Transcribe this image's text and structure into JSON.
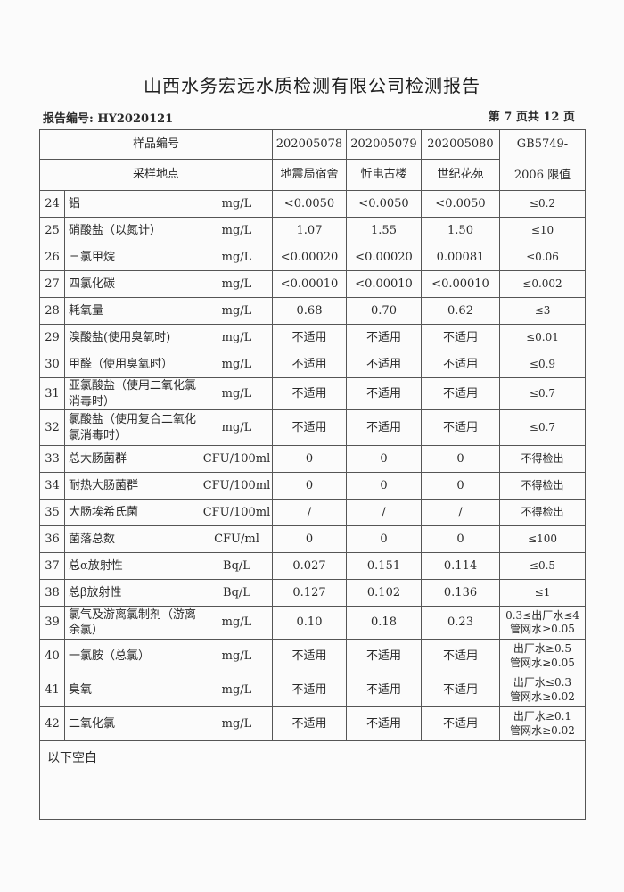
{
  "title": "山西水务宏远水质检测有限公司检测报告",
  "report_number": "报告编号: HY2020121",
  "page_info": "第 7 页共 12 页",
  "header": {
    "sample_no_label": "样品编号",
    "location_label": "采样地点",
    "samples": [
      {
        "id": "202005078",
        "location": "地震局宿舍"
      },
      {
        "id": "202005079",
        "location": "忻电古楼"
      },
      {
        "id": "202005080",
        "location": "世纪花苑"
      }
    ],
    "limit_label_1": "GB5749-",
    "limit_label_2": "2006 限值"
  },
  "rows": [
    {
      "no": "24",
      "name": "铝",
      "unit": "mg/L",
      "v1": "<0.0050",
      "v2": "<0.0050",
      "v3": "<0.0050",
      "limit": "≤0.2"
    },
    {
      "no": "25",
      "name": "硝酸盐（以氮计）",
      "unit": "mg/L",
      "v1": "1.07",
      "v2": "1.55",
      "v3": "1.50",
      "limit": "≤10"
    },
    {
      "no": "26",
      "name": "三氯甲烷",
      "unit": "mg/L",
      "v1": "<0.00020",
      "v2": "<0.00020",
      "v3": "0.00081",
      "limit": "≤0.06"
    },
    {
      "no": "27",
      "name": "四氯化碳",
      "unit": "mg/L",
      "v1": "<0.00010",
      "v2": "<0.00010",
      "v3": "<0.00010",
      "limit": "≤0.002"
    },
    {
      "no": "28",
      "name": "耗氧量",
      "unit": "mg/L",
      "v1": "0.68",
      "v2": "0.70",
      "v3": "0.62",
      "limit": "≤3"
    },
    {
      "no": "29",
      "name": "溴酸盐(使用臭氧时)",
      "unit": "mg/L",
      "v1": "不适用",
      "v2": "不适用",
      "v3": "不适用",
      "limit": "≤0.01"
    },
    {
      "no": "30",
      "name": "甲醛（使用臭氧时）",
      "unit": "mg/L",
      "v1": "不适用",
      "v2": "不适用",
      "v3": "不适用",
      "limit": "≤0.9"
    },
    {
      "no": "31",
      "name": "亚氯酸盐（使用二氧化氯消毒时）",
      "unit": "mg/L",
      "v1": "不适用",
      "v2": "不适用",
      "v3": "不适用",
      "limit": "≤0.7"
    },
    {
      "no": "32",
      "name": "氯酸盐（使用复合二氧化氯消毒时）",
      "unit": "mg/L",
      "v1": "不适用",
      "v2": "不适用",
      "v3": "不适用",
      "limit": "≤0.7"
    },
    {
      "no": "33",
      "name": "总大肠菌群",
      "unit": "CFU/100ml",
      "v1": "0",
      "v2": "0",
      "v3": "0",
      "limit": "不得检出"
    },
    {
      "no": "34",
      "name": "耐热大肠菌群",
      "unit": "CFU/100ml",
      "v1": "0",
      "v2": "0",
      "v3": "0",
      "limit": "不得检出"
    },
    {
      "no": "35",
      "name": "大肠埃希氏菌",
      "unit": "CFU/100ml",
      "v1": "/",
      "v2": "/",
      "v3": "/",
      "limit": "不得检出"
    },
    {
      "no": "36",
      "name": "菌落总数",
      "unit": "CFU/ml",
      "v1": "0",
      "v2": "0",
      "v3": "0",
      "limit": "≤100"
    },
    {
      "no": "37",
      "name": "总α放射性",
      "unit": "Bq/L",
      "v1": "0.027",
      "v2": "0.151",
      "v3": "0.114",
      "limit": "≤0.5"
    },
    {
      "no": "38",
      "name": "总β放射性",
      "unit": "Bq/L",
      "v1": "0.127",
      "v2": "0.102",
      "v3": "0.136",
      "limit": "≤1"
    },
    {
      "no": "39",
      "name": "氯气及游离氯制剂（游离余氯）",
      "unit": "mg/L",
      "v1": "0.10",
      "v2": "0.18",
      "v3": "0.23",
      "limit": "0.3≤出厂水≤4 管网水≥0.05"
    },
    {
      "no": "40",
      "name": "一氯胺（总氯）",
      "unit": "mg/L",
      "v1": "不适用",
      "v2": "不适用",
      "v3": "不适用",
      "limit": "出厂水≥0.5 管网水≥0.05"
    },
    {
      "no": "41",
      "name": "臭氧",
      "unit": "mg/L",
      "v1": "不适用",
      "v2": "不适用",
      "v3": "不适用",
      "limit": "出厂水≤0.3 管网水≥0.02"
    },
    {
      "no": "42",
      "name": "二氧化氯",
      "unit": "mg/L",
      "v1": "不适用",
      "v2": "不适用",
      "v3": "不适用",
      "limit": "出厂水≥0.1 管网水≥0.02"
    }
  ],
  "footer_note": "以下空白"
}
